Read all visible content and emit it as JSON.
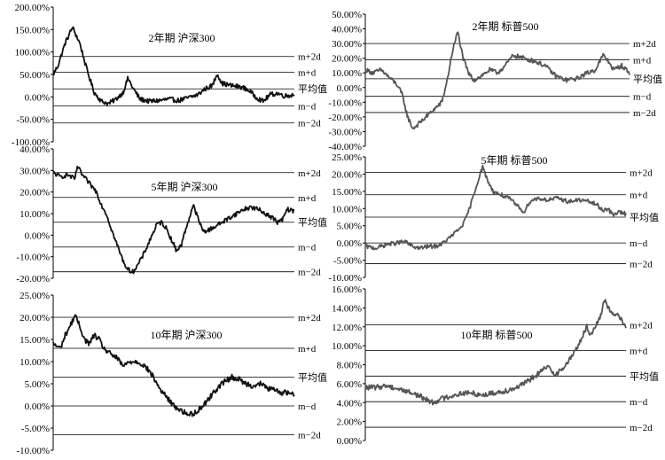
{
  "chart_data": [
    {
      "type": "line",
      "title": "2年期   沪深300",
      "series_color": "#111111",
      "ylim": [
        -1.0,
        2.0
      ],
      "yticks": [
        -1.0,
        -0.5,
        0.0,
        0.5,
        1.0,
        1.5,
        2.0
      ],
      "ytick_labels": [
        "-100.00%",
        "-50.00%",
        "0.00%",
        "50.00%",
        "100.00%",
        "150.00%",
        "200.00%"
      ],
      "ref_lines": [
        {
          "label": "m+2d",
          "value": 0.9
        },
        {
          "label": "m+d",
          "value": 0.55
        },
        {
          "label": "平均值",
          "value": 0.18
        },
        {
          "label": "m−d",
          "value": -0.2
        },
        {
          "label": "m−2d",
          "value": -0.58
        }
      ],
      "keypoints": [
        [
          0,
          0.5
        ],
        [
          0.02,
          0.7
        ],
        [
          0.05,
          1.2
        ],
        [
          0.08,
          1.55
        ],
        [
          0.11,
          1.2
        ],
        [
          0.14,
          0.6
        ],
        [
          0.17,
          0.1
        ],
        [
          0.2,
          -0.1
        ],
        [
          0.23,
          -0.15
        ],
        [
          0.26,
          -0.05
        ],
        [
          0.29,
          0.1
        ],
        [
          0.31,
          0.42
        ],
        [
          0.33,
          0.2
        ],
        [
          0.36,
          -0.05
        ],
        [
          0.4,
          -0.1
        ],
        [
          0.44,
          -0.08
        ],
        [
          0.48,
          -0.05
        ],
        [
          0.52,
          -0.08
        ],
        [
          0.56,
          -0.02
        ],
        [
          0.6,
          0.05
        ],
        [
          0.63,
          0.18
        ],
        [
          0.66,
          0.25
        ],
        [
          0.68,
          0.52
        ],
        [
          0.7,
          0.3
        ],
        [
          0.74,
          0.25
        ],
        [
          0.78,
          0.22
        ],
        [
          0.81,
          0.15
        ],
        [
          0.84,
          0.0
        ],
        [
          0.87,
          -0.1
        ],
        [
          0.9,
          0.05
        ],
        [
          0.93,
          0.08
        ],
        [
          0.96,
          0.02
        ],
        [
          1.0,
          0.05
        ]
      ]
    },
    {
      "type": "line",
      "title": "2年期   标普500",
      "series_color": "#555555",
      "ylim": [
        -0.4,
        0.5
      ],
      "yticks": [
        -0.4,
        -0.3,
        -0.2,
        -0.1,
        0.0,
        0.1,
        0.2,
        0.3,
        0.4,
        0.5
      ],
      "ytick_labels": [
        "-40.00%",
        "-30.00%",
        "-20.00%",
        "-10.00%",
        "0.00%",
        "10.00%",
        "20.00%",
        "30.00%",
        "40.00%",
        "50.00%"
      ],
      "ref_lines": [
        {
          "label": "m+2d",
          "value": 0.3
        },
        {
          "label": "m+d",
          "value": 0.19
        },
        {
          "label": "平均值",
          "value": 0.06
        },
        {
          "label": "m−d",
          "value": -0.06
        },
        {
          "label": "m−2d",
          "value": -0.17
        }
      ],
      "keypoints": [
        [
          0,
          0.12
        ],
        [
          0.03,
          0.1
        ],
        [
          0.06,
          0.12
        ],
        [
          0.09,
          0.07
        ],
        [
          0.12,
          0.02
        ],
        [
          0.14,
          -0.05
        ],
        [
          0.16,
          -0.2
        ],
        [
          0.18,
          -0.28
        ],
        [
          0.2,
          -0.25
        ],
        [
          0.23,
          -0.2
        ],
        [
          0.26,
          -0.15
        ],
        [
          0.29,
          -0.1
        ],
        [
          0.31,
          0.05
        ],
        [
          0.33,
          0.25
        ],
        [
          0.35,
          0.38
        ],
        [
          0.37,
          0.2
        ],
        [
          0.39,
          0.1
        ],
        [
          0.41,
          0.05
        ],
        [
          0.44,
          0.08
        ],
        [
          0.47,
          0.12
        ],
        [
          0.5,
          0.1
        ],
        [
          0.53,
          0.15
        ],
        [
          0.56,
          0.22
        ],
        [
          0.6,
          0.2
        ],
        [
          0.64,
          0.18
        ],
        [
          0.68,
          0.15
        ],
        [
          0.72,
          0.08
        ],
        [
          0.76,
          0.05
        ],
        [
          0.8,
          0.06
        ],
        [
          0.84,
          0.1
        ],
        [
          0.87,
          0.12
        ],
        [
          0.9,
          0.22
        ],
        [
          0.92,
          0.18
        ],
        [
          0.94,
          0.12
        ],
        [
          0.97,
          0.15
        ],
        [
          1.0,
          0.1
        ]
      ]
    },
    {
      "type": "line",
      "title": "5年期   沪深300",
      "series_color": "#111111",
      "ylim": [
        -0.2,
        0.4
      ],
      "yticks": [
        -0.2,
        -0.1,
        0.0,
        0.1,
        0.2,
        0.3,
        0.4
      ],
      "ytick_labels": [
        "-20.00%",
        "-10.00%",
        "0.00%",
        "10.00%",
        "20.00%",
        "30.00%",
        "40.00%"
      ],
      "ref_lines": [
        {
          "label": "m+2d",
          "value": 0.29
        },
        {
          "label": "m+d",
          "value": 0.175
        },
        {
          "label": "平均值",
          "value": 0.06
        },
        {
          "label": "m−d",
          "value": -0.055
        },
        {
          "label": "m−2d",
          "value": -0.17
        }
      ],
      "keypoints": [
        [
          0,
          0.29
        ],
        [
          0.03,
          0.27
        ],
        [
          0.06,
          0.28
        ],
        [
          0.09,
          0.26
        ],
        [
          0.1,
          0.32
        ],
        [
          0.12,
          0.28
        ],
        [
          0.15,
          0.24
        ],
        [
          0.18,
          0.2
        ],
        [
          0.2,
          0.14
        ],
        [
          0.22,
          0.1
        ],
        [
          0.25,
          0.0
        ],
        [
          0.27,
          -0.06
        ],
        [
          0.29,
          -0.12
        ],
        [
          0.31,
          -0.16
        ],
        [
          0.33,
          -0.17
        ],
        [
          0.35,
          -0.14
        ],
        [
          0.37,
          -0.1
        ],
        [
          0.39,
          -0.05
        ],
        [
          0.41,
          0.0
        ],
        [
          0.43,
          0.05
        ],
        [
          0.45,
          0.06
        ],
        [
          0.47,
          0.03
        ],
        [
          0.49,
          -0.02
        ],
        [
          0.51,
          -0.07
        ],
        [
          0.53,
          -0.05
        ],
        [
          0.55,
          0.03
        ],
        [
          0.57,
          0.1
        ],
        [
          0.58,
          0.14
        ],
        [
          0.6,
          0.08
        ],
        [
          0.62,
          0.02
        ],
        [
          0.64,
          0.02
        ],
        [
          0.67,
          0.04
        ],
        [
          0.7,
          0.06
        ],
        [
          0.73,
          0.08
        ],
        [
          0.76,
          0.1
        ],
        [
          0.79,
          0.12
        ],
        [
          0.82,
          0.13
        ],
        [
          0.85,
          0.12
        ],
        [
          0.88,
          0.1
        ],
        [
          0.91,
          0.08
        ],
        [
          0.93,
          0.06
        ],
        [
          0.95,
          0.07
        ],
        [
          0.97,
          0.12
        ],
        [
          1.0,
          0.11
        ]
      ]
    },
    {
      "type": "line",
      "title": "5年期   标普500",
      "series_color": "#555555",
      "ylim": [
        -0.1,
        0.25
      ],
      "yticks": [
        -0.1,
        -0.05,
        0.0,
        0.05,
        0.1,
        0.15,
        0.2,
        0.25
      ],
      "ytick_labels": [
        "-10.00%",
        "-5.00%",
        "0.00%",
        "5.00%",
        "10.00%",
        "15.00%",
        "20.00%",
        "25.00%"
      ],
      "ref_lines": [
        {
          "label": "m+2d",
          "value": 0.205
        },
        {
          "label": "m+d",
          "value": 0.14
        },
        {
          "label": "平均值",
          "value": 0.075
        },
        {
          "label": "m−d",
          "value": 0.0
        },
        {
          "label": "m−2d",
          "value": -0.06
        }
      ],
      "keypoints": [
        [
          0,
          -0.01
        ],
        [
          0.04,
          -0.015
        ],
        [
          0.08,
          -0.005
        ],
        [
          0.12,
          0.0
        ],
        [
          0.15,
          0.005
        ],
        [
          0.18,
          -0.01
        ],
        [
          0.21,
          -0.015
        ],
        [
          0.24,
          -0.01
        ],
        [
          0.27,
          -0.01
        ],
        [
          0.3,
          0.0
        ],
        [
          0.33,
          0.02
        ],
        [
          0.36,
          0.04
        ],
        [
          0.38,
          0.06
        ],
        [
          0.4,
          0.1
        ],
        [
          0.42,
          0.15
        ],
        [
          0.44,
          0.2
        ],
        [
          0.45,
          0.22
        ],
        [
          0.47,
          0.18
        ],
        [
          0.49,
          0.15
        ],
        [
          0.52,
          0.14
        ],
        [
          0.55,
          0.13
        ],
        [
          0.58,
          0.11
        ],
        [
          0.61,
          0.09
        ],
        [
          0.63,
          0.12
        ],
        [
          0.66,
          0.13
        ],
        [
          0.7,
          0.125
        ],
        [
          0.74,
          0.13
        ],
        [
          0.78,
          0.12
        ],
        [
          0.82,
          0.125
        ],
        [
          0.86,
          0.12
        ],
        [
          0.89,
          0.11
        ],
        [
          0.91,
          0.095
        ],
        [
          0.93,
          0.1
        ],
        [
          0.95,
          0.08
        ],
        [
          0.97,
          0.09
        ],
        [
          1.0,
          0.085
        ]
      ]
    },
    {
      "type": "line",
      "title": "10年期   沪深300",
      "series_color": "#111111",
      "ylim": [
        -0.1,
        0.25
      ],
      "yticks": [
        -0.1,
        -0.05,
        0.0,
        0.05,
        0.1,
        0.15,
        0.2,
        0.25
      ],
      "ytick_labels": [
        "-10.00%",
        "-5.00%",
        "0.00%",
        "5.00%",
        "10.00%",
        "15.00%",
        "20.00%",
        "25.00%"
      ],
      "ref_lines": [
        {
          "label": "m+2d",
          "value": 0.2
        },
        {
          "label": "m+d",
          "value": 0.13
        },
        {
          "label": "平均值",
          "value": 0.065
        },
        {
          "label": "m−d",
          "value": 0.0
        },
        {
          "label": "m−2d",
          "value": -0.065
        }
      ],
      "keypoints": [
        [
          0,
          0.14
        ],
        [
          0.03,
          0.13
        ],
        [
          0.05,
          0.16
        ],
        [
          0.07,
          0.18
        ],
        [
          0.09,
          0.205
        ],
        [
          0.11,
          0.18
        ],
        [
          0.13,
          0.15
        ],
        [
          0.15,
          0.14
        ],
        [
          0.17,
          0.16
        ],
        [
          0.19,
          0.15
        ],
        [
          0.21,
          0.13
        ],
        [
          0.23,
          0.12
        ],
        [
          0.26,
          0.11
        ],
        [
          0.29,
          0.09
        ],
        [
          0.32,
          0.1
        ],
        [
          0.35,
          0.1
        ],
        [
          0.38,
          0.09
        ],
        [
          0.41,
          0.07
        ],
        [
          0.44,
          0.04
        ],
        [
          0.47,
          0.02
        ],
        [
          0.5,
          0.0
        ],
        [
          0.53,
          -0.01
        ],
        [
          0.56,
          -0.02
        ],
        [
          0.59,
          -0.015
        ],
        [
          0.62,
          0.0
        ],
        [
          0.65,
          0.02
        ],
        [
          0.68,
          0.04
        ],
        [
          0.71,
          0.055
        ],
        [
          0.74,
          0.065
        ],
        [
          0.77,
          0.06
        ],
        [
          0.8,
          0.05
        ],
        [
          0.83,
          0.045
        ],
        [
          0.86,
          0.05
        ],
        [
          0.89,
          0.04
        ],
        [
          0.92,
          0.035
        ],
        [
          0.95,
          0.03
        ],
        [
          0.98,
          0.03
        ],
        [
          1.0,
          0.025
        ]
      ]
    },
    {
      "type": "line",
      "title": "10年期   标普500",
      "series_color": "#555555",
      "ylim": [
        0.0,
        0.16
      ],
      "yticks": [
        0.0,
        0.02,
        0.04,
        0.06,
        0.08,
        0.1,
        0.12,
        0.14,
        0.16
      ],
      "ytick_labels": [
        "0.00%",
        "2.00%",
        "4.00%",
        "6.00%",
        "8.00%",
        "10.00%",
        "12.00%",
        "14.00%",
        "16.00%"
      ],
      "ref_lines": [
        {
          "label": "m+2d",
          "value": 0.122
        },
        {
          "label": "m+d",
          "value": 0.095
        },
        {
          "label": "平均值",
          "value": 0.068
        },
        {
          "label": "m−d",
          "value": 0.041
        },
        {
          "label": "m−2d",
          "value": 0.014
        }
      ],
      "keypoints": [
        [
          0,
          0.056
        ],
        [
          0.04,
          0.056
        ],
        [
          0.08,
          0.058
        ],
        [
          0.12,
          0.055
        ],
        [
          0.16,
          0.052
        ],
        [
          0.2,
          0.048
        ],
        [
          0.23,
          0.044
        ],
        [
          0.26,
          0.04
        ],
        [
          0.29,
          0.044
        ],
        [
          0.33,
          0.047
        ],
        [
          0.37,
          0.05
        ],
        [
          0.41,
          0.05
        ],
        [
          0.45,
          0.048
        ],
        [
          0.49,
          0.05
        ],
        [
          0.53,
          0.052
        ],
        [
          0.57,
          0.055
        ],
        [
          0.61,
          0.06
        ],
        [
          0.64,
          0.066
        ],
        [
          0.67,
          0.072
        ],
        [
          0.7,
          0.078
        ],
        [
          0.73,
          0.07
        ],
        [
          0.75,
          0.074
        ],
        [
          0.77,
          0.08
        ],
        [
          0.8,
          0.092
        ],
        [
          0.83,
          0.108
        ],
        [
          0.85,
          0.12
        ],
        [
          0.86,
          0.11
        ],
        [
          0.88,
          0.12
        ],
        [
          0.9,
          0.13
        ],
        [
          0.92,
          0.15
        ],
        [
          0.93,
          0.14
        ],
        [
          0.95,
          0.135
        ],
        [
          0.97,
          0.132
        ],
        [
          1.0,
          0.12
        ]
      ]
    }
  ]
}
